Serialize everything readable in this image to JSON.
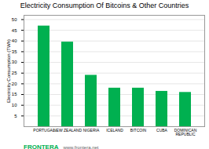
{
  "chart_data": {
    "type": "bar",
    "title": "Electricity Consumption Of Bitcoins & Other Countries",
    "categories": [
      "PORTUGAL",
      "NEW ZEALAND",
      "NIGERIA",
      "ICELAND",
      "BITCOIN",
      "CUBA",
      "DOMINICAN\nREPUBLIC"
    ],
    "values": [
      47,
      39.5,
      24,
      18,
      18,
      16.5,
      16
    ],
    "color": "#00b050",
    "ylabel": "Electricity Consumption (TWh)",
    "ylim": [
      0,
      52
    ],
    "yticks": [
      5,
      10,
      15,
      20,
      25,
      30,
      35,
      40,
      45,
      50
    ],
    "grid": true,
    "annotations": [
      "FRONTERA",
      "www.frontera.net"
    ]
  }
}
